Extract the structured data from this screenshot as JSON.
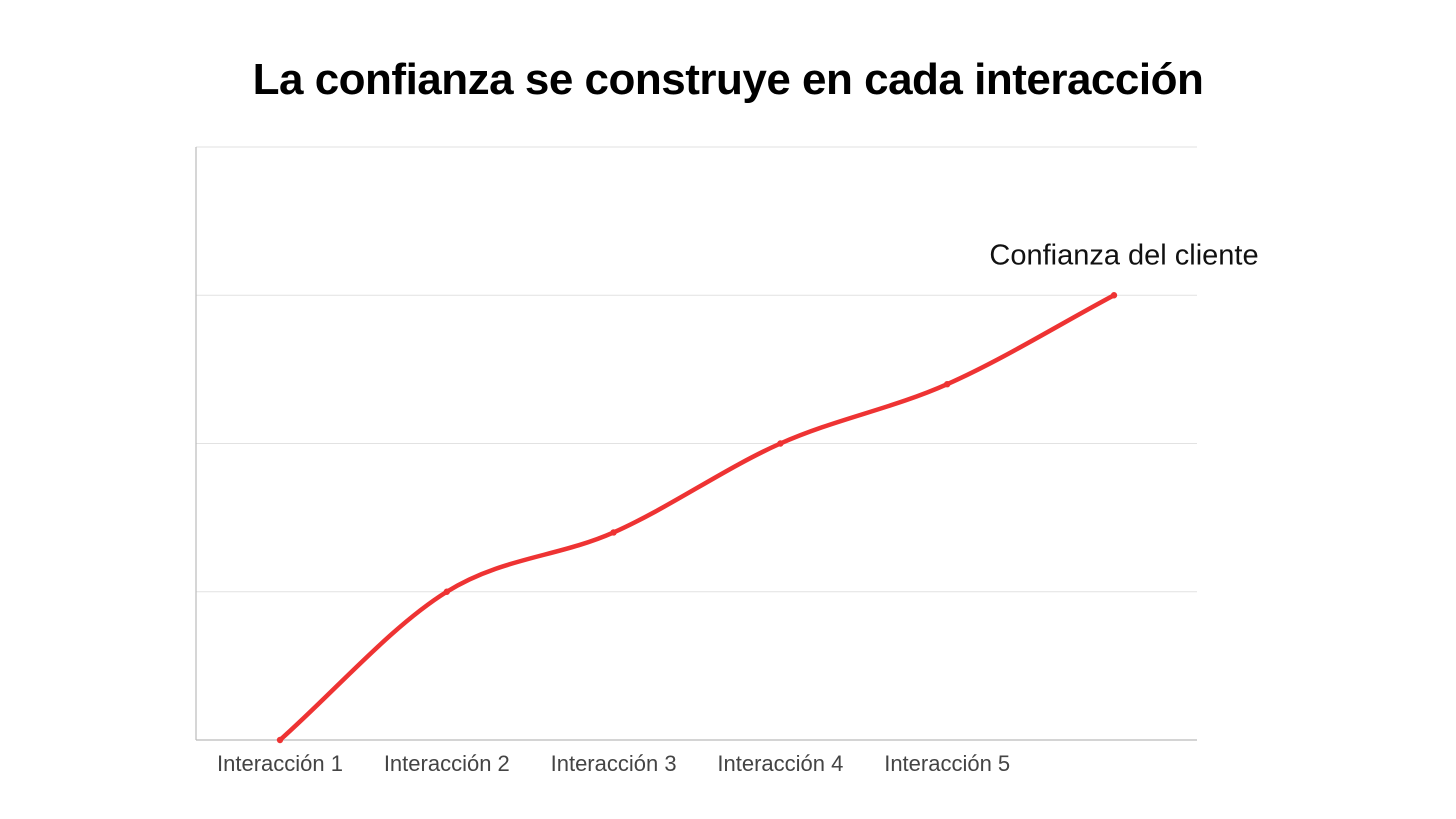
{
  "chart_data": {
    "type": "line",
    "title": "La confianza se construye en cada interacción",
    "xlabel": "",
    "ylabel": "",
    "categories": [
      "Interacción 1",
      "Interacción 2",
      "Interacción 3",
      "Interacción 4",
      "Interacción 5",
      ""
    ],
    "series": [
      {
        "name": "Confianza del cliente",
        "values": [
          0,
          1,
          1.4,
          2,
          2.4,
          3
        ]
      }
    ],
    "ylim": [
      0,
      4
    ],
    "grid": true,
    "smooth": true,
    "series_label_position": "end-of-line",
    "colors": {
      "line": "#EE3333",
      "grid": "#E2E2E2",
      "axis": "#BBBBBB",
      "tick_text": "#444444"
    }
  }
}
